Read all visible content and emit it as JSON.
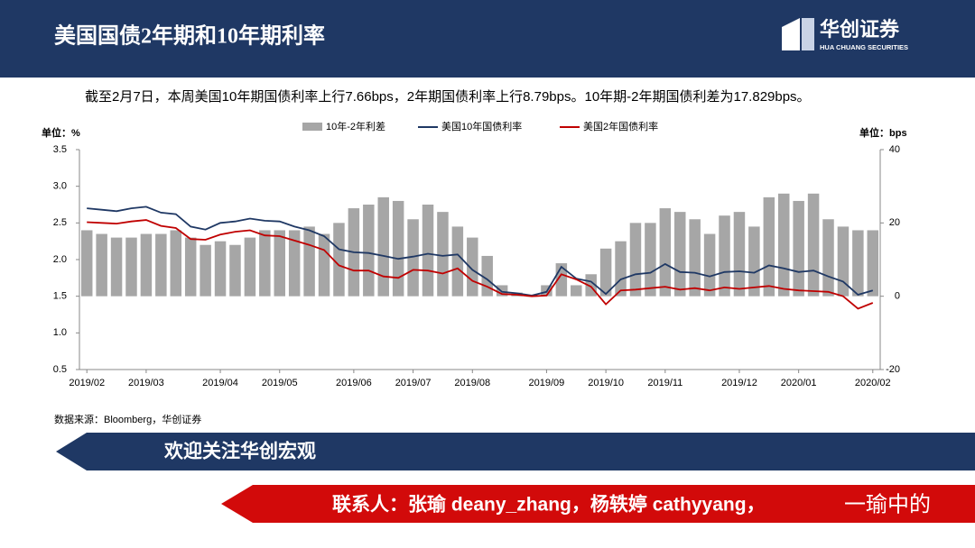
{
  "header": {
    "title": "美国国债2年期和10年期利率",
    "logo_cn": "华创证券",
    "logo_en": "HUA CHUANG SECURITIES"
  },
  "summary": "截至2月7日，本周美国10年期国债利率上行7.66bps，2年期国债利率上行8.79bps。10年期-2年期国债利差为17.829bps。",
  "chart_data": {
    "type": "bar-line",
    "left_unit": "单位：%",
    "right_unit": "单位：bps",
    "categories": [
      "2019/02",
      null,
      null,
      null,
      "2019/03",
      null,
      null,
      null,
      null,
      "2019/04",
      null,
      null,
      null,
      "2019/05",
      null,
      null,
      null,
      null,
      "2019/06",
      null,
      null,
      null,
      "2019/07",
      null,
      null,
      null,
      "2019/08",
      null,
      null,
      null,
      null,
      "2019/09",
      null,
      null,
      null,
      "2019/10",
      null,
      null,
      null,
      "2019/11",
      null,
      null,
      null,
      null,
      "2019/12",
      null,
      null,
      null,
      "2020/01",
      null,
      null,
      null,
      null,
      "2020/02"
    ],
    "series": [
      {
        "name": "10年-2年利差",
        "type": "bar",
        "axis": "y2",
        "color": "#a6a6a6",
        "values": [
          18,
          17,
          16,
          16,
          17,
          17,
          18,
          16,
          14,
          15,
          14,
          16,
          18,
          18,
          18,
          19,
          17,
          20,
          24,
          25,
          27,
          26,
          21,
          25,
          23,
          19,
          16,
          11,
          3,
          1,
          0,
          3,
          9,
          3,
          6,
          13,
          15,
          20,
          20,
          24,
          23,
          21,
          17,
          22,
          23,
          19,
          27,
          28,
          26,
          28,
          21,
          19,
          18,
          18
        ]
      },
      {
        "name": "美国10年国债利率",
        "type": "line",
        "color": "#1f3864",
        "values": [
          2.7,
          2.68,
          2.66,
          2.7,
          2.72,
          2.64,
          2.62,
          2.45,
          2.41,
          2.5,
          2.52,
          2.56,
          2.53,
          2.52,
          2.45,
          2.4,
          2.32,
          2.14,
          2.1,
          2.09,
          2.05,
          2.01,
          2.04,
          2.08,
          2.05,
          2.07,
          1.86,
          1.73,
          1.56,
          1.54,
          1.51,
          1.56,
          1.9,
          1.74,
          1.7,
          1.53,
          1.73,
          1.8,
          1.82,
          1.94,
          1.83,
          1.82,
          1.77,
          1.83,
          1.84,
          1.82,
          1.92,
          1.88,
          1.83,
          1.85,
          1.77,
          1.7,
          1.52,
          1.58
        ]
      },
      {
        "name": "美国2年国债利率",
        "type": "line",
        "color": "#c00000",
        "values": [
          2.51,
          2.5,
          2.49,
          2.52,
          2.54,
          2.46,
          2.43,
          2.28,
          2.27,
          2.34,
          2.38,
          2.4,
          2.33,
          2.32,
          2.26,
          2.2,
          2.13,
          1.92,
          1.85,
          1.85,
          1.77,
          1.75,
          1.86,
          1.85,
          1.81,
          1.88,
          1.71,
          1.63,
          1.53,
          1.52,
          1.5,
          1.51,
          1.8,
          1.73,
          1.63,
          1.39,
          1.58,
          1.59,
          1.61,
          1.63,
          1.59,
          1.61,
          1.58,
          1.62,
          1.6,
          1.62,
          1.64,
          1.6,
          1.58,
          1.57,
          1.56,
          1.5,
          1.33,
          1.41
        ]
      }
    ],
    "ylim": [
      0.5,
      3.5
    ],
    "yticks": [
      0.5,
      {
        "value": 1,
        "label": "1.0"
      },
      1.5,
      {
        "value": 2,
        "label": "2.0"
      },
      2.5,
      {
        "value": 3,
        "label": "3.0"
      },
      3.5
    ],
    "y2lim": [
      -20,
      40
    ],
    "y2ticks": [
      -20,
      0,
      20,
      40
    ]
  },
  "source": "数据来源：Bloomberg，华创证券",
  "banner": "欢迎关注华创宏观",
  "contact": "联系人：张瑜 deany_zhang，杨轶婷 cathyyang，",
  "watermark": "一瑜中的"
}
